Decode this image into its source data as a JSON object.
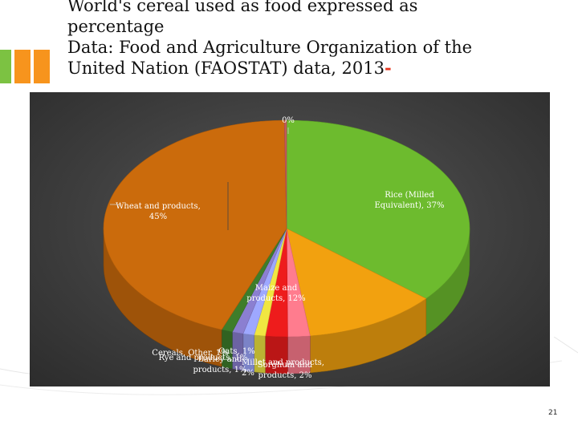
{
  "slide": {
    "title_lines": [
      "World's cereal used as food expressed as",
      "percentage",
      "Data: Food and Agriculture Organization of the",
      "United Nation (FAOSTAT) data, 2013"
    ],
    "title_dash": "-",
    "page_number": "21",
    "accent_colors": [
      "#7cc242",
      "#f7941d",
      "#f7941d"
    ]
  },
  "chart_data": {
    "type": "pie",
    "style": "3d",
    "title": "",
    "slices": [
      {
        "label": "Rice (Milled Equivalent), 37%",
        "value": 37,
        "color": "#6dbb2e"
      },
      {
        "label": "Maize and products, 12%",
        "value": 12,
        "color": "#f2a10f"
      },
      {
        "label": "Sorghum and products, 2%",
        "value": 2,
        "color": "#ff7c8e"
      },
      {
        "label": "Millet and products, 2%",
        "value": 2,
        "color": "#ee1c1c"
      },
      {
        "label": "Barley and products, 1%",
        "value": 1,
        "color": "#f0e641"
      },
      {
        "label": "Cereals, Other, 1%",
        "value": 1,
        "color": "#9ea8ff"
      },
      {
        "label": "Rye and products, 1%",
        "value": 1,
        "color": "#8b7fd1"
      },
      {
        "label": "Oats, 1%",
        "value": 1,
        "color": "#3e7d2a"
      },
      {
        "label": "Wheat and products, 45%",
        "value": 45,
        "color": "#cb6b0c"
      },
      {
        "label": "0%",
        "value": 0.2,
        "color": "#c45a5a"
      }
    ],
    "label_lines": {
      "rice": [
        "Rice (Milled",
        "Equivalent), 37%"
      ],
      "wheat": [
        "Wheat and products,",
        "45%"
      ],
      "maize": [
        "Maize and",
        "products, 12%"
      ],
      "sorghum": [
        "Sorghum and",
        "products, 2%"
      ],
      "millet": [
        "Millet and products,",
        "2%"
      ],
      "barley": [
        "Barley and",
        "products, 1%"
      ],
      "cereals": [
        "Cereals, Other, 1%"
      ],
      "rye": [
        "Rye and products, 1%"
      ],
      "oats": [
        "Oats, 1%"
      ],
      "zero": [
        "0%"
      ]
    },
    "legend": "none"
  }
}
